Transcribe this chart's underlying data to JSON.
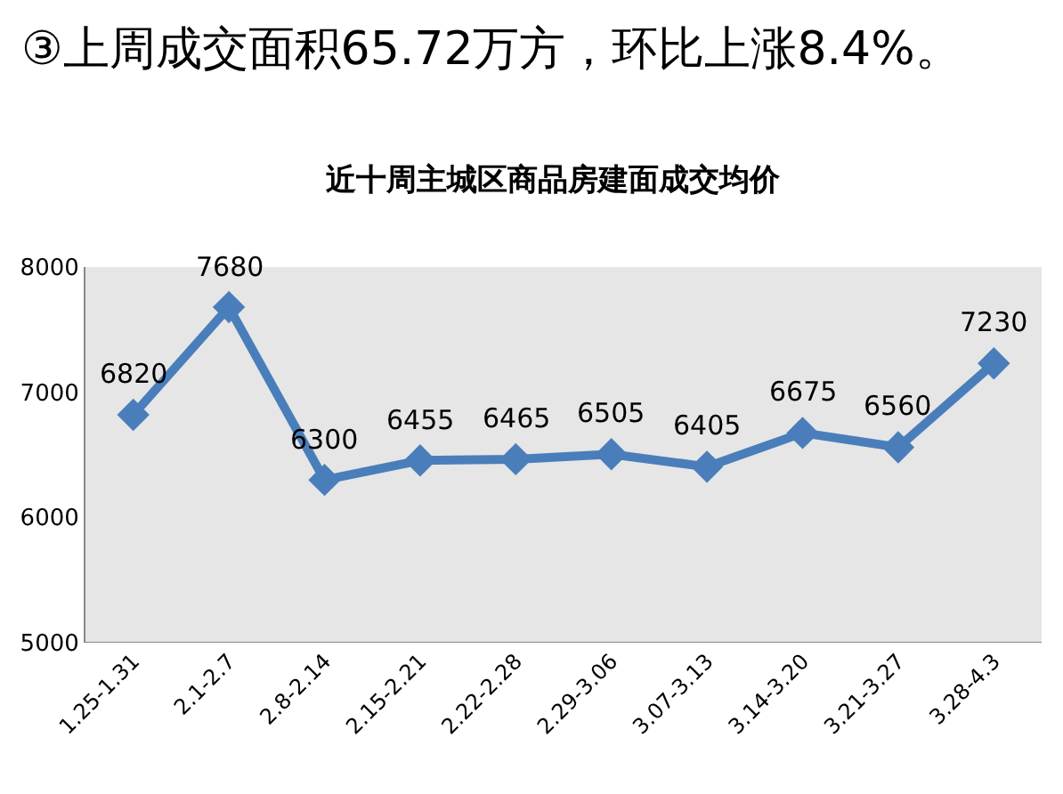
{
  "chart_data": {
    "type": "line",
    "title": "近十周主城区商品房建面成交均价",
    "annotations": [
      "③上周成交面积65.72万方，环比上涨8.4%。"
    ],
    "categories": [
      "1.25-1.31",
      "2.1-2.7",
      "2.8-2.14",
      "2.15-2.21",
      "2.22-2.28",
      "2.29-3.06",
      "3.07-3.13",
      "3.14-3.20",
      "3.21-3.27",
      "3.28-4.3"
    ],
    "series": [
      {
        "color": "#4a7ebb",
        "values": [
          6820,
          7680,
          6300,
          6455,
          6465,
          6505,
          6405,
          6675,
          6560,
          7230
        ]
      }
    ],
    "ylim": [
      5000,
      8000
    ],
    "yticks": [
      5000,
      6000,
      7000,
      8000
    ],
    "grid": false,
    "marker": "diamond",
    "line_style": "solid",
    "data_labels": true
  }
}
